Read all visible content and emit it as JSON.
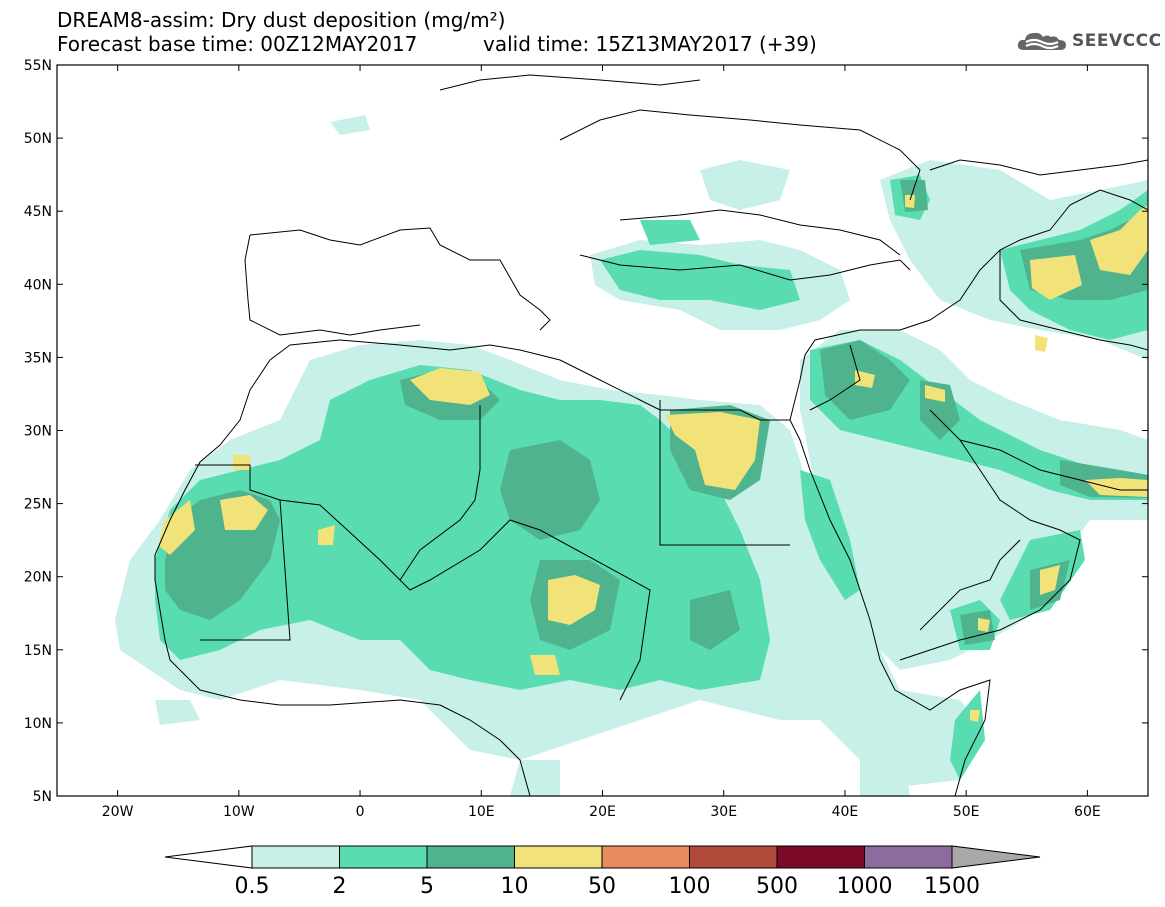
{
  "title": {
    "line1": "DREAM8-assim: Dry dust deposition (mg/m²)",
    "base_time": "Forecast base time: 00Z12MAY2017",
    "valid_time": "valid time: 15Z13MAY2017 (+39)"
  },
  "logo": {
    "text": "SEEVCCC",
    "icon": "cloud-logo-icon"
  },
  "map": {
    "projection": "lat-lon",
    "lon_range": [
      -25,
      65
    ],
    "lat_range": [
      5,
      55
    ],
    "lat_ticks": [
      "55N",
      "50N",
      "45N",
      "40N",
      "35N",
      "30N",
      "25N",
      "20N",
      "15N",
      "10N",
      "5N"
    ],
    "lon_ticks": [
      "20W",
      "10W",
      "0",
      "10E",
      "20E",
      "30E",
      "40E",
      "50E",
      "60E"
    ]
  },
  "colorbar": {
    "labels": [
      "0.5",
      "2",
      "5",
      "10",
      "50",
      "100",
      "500",
      "1000",
      "1500"
    ],
    "colors": [
      "#c6f0e8",
      "#58dcb0",
      "#4fb48e",
      "#f2e27a",
      "#e88c5e",
      "#b14a3a",
      "#7a0a26",
      "#8e6b9e",
      "#a8a8a8"
    ],
    "extend": "both"
  }
}
